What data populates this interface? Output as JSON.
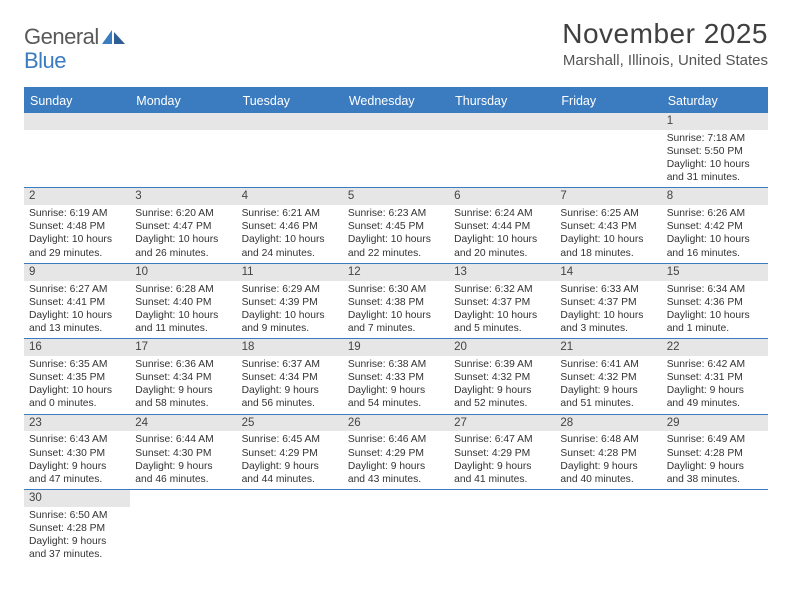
{
  "logo": {
    "part1": "General",
    "part2": "Blue"
  },
  "title": "November 2025",
  "location": "Marshall, Illinois, United States",
  "colors": {
    "accent": "#3b7bbf",
    "header_text": "#ffffff",
    "daynum_bg": "#e6e6e6",
    "text": "#333333",
    "title_color": "#404040",
    "logo_gray": "#595959"
  },
  "day_headers": [
    "Sunday",
    "Monday",
    "Tuesday",
    "Wednesday",
    "Thursday",
    "Friday",
    "Saturday"
  ],
  "weeks": [
    [
      null,
      null,
      null,
      null,
      null,
      null,
      {
        "n": "1",
        "sunrise": "Sunrise: 7:18 AM",
        "sunset": "Sunset: 5:50 PM",
        "dl1": "Daylight: 10 hours",
        "dl2": "and 31 minutes."
      }
    ],
    [
      {
        "n": "2",
        "sunrise": "Sunrise: 6:19 AM",
        "sunset": "Sunset: 4:48 PM",
        "dl1": "Daylight: 10 hours",
        "dl2": "and 29 minutes."
      },
      {
        "n": "3",
        "sunrise": "Sunrise: 6:20 AM",
        "sunset": "Sunset: 4:47 PM",
        "dl1": "Daylight: 10 hours",
        "dl2": "and 26 minutes."
      },
      {
        "n": "4",
        "sunrise": "Sunrise: 6:21 AM",
        "sunset": "Sunset: 4:46 PM",
        "dl1": "Daylight: 10 hours",
        "dl2": "and 24 minutes."
      },
      {
        "n": "5",
        "sunrise": "Sunrise: 6:23 AM",
        "sunset": "Sunset: 4:45 PM",
        "dl1": "Daylight: 10 hours",
        "dl2": "and 22 minutes."
      },
      {
        "n": "6",
        "sunrise": "Sunrise: 6:24 AM",
        "sunset": "Sunset: 4:44 PM",
        "dl1": "Daylight: 10 hours",
        "dl2": "and 20 minutes."
      },
      {
        "n": "7",
        "sunrise": "Sunrise: 6:25 AM",
        "sunset": "Sunset: 4:43 PM",
        "dl1": "Daylight: 10 hours",
        "dl2": "and 18 minutes."
      },
      {
        "n": "8",
        "sunrise": "Sunrise: 6:26 AM",
        "sunset": "Sunset: 4:42 PM",
        "dl1": "Daylight: 10 hours",
        "dl2": "and 16 minutes."
      }
    ],
    [
      {
        "n": "9",
        "sunrise": "Sunrise: 6:27 AM",
        "sunset": "Sunset: 4:41 PM",
        "dl1": "Daylight: 10 hours",
        "dl2": "and 13 minutes."
      },
      {
        "n": "10",
        "sunrise": "Sunrise: 6:28 AM",
        "sunset": "Sunset: 4:40 PM",
        "dl1": "Daylight: 10 hours",
        "dl2": "and 11 minutes."
      },
      {
        "n": "11",
        "sunrise": "Sunrise: 6:29 AM",
        "sunset": "Sunset: 4:39 PM",
        "dl1": "Daylight: 10 hours",
        "dl2": "and 9 minutes."
      },
      {
        "n": "12",
        "sunrise": "Sunrise: 6:30 AM",
        "sunset": "Sunset: 4:38 PM",
        "dl1": "Daylight: 10 hours",
        "dl2": "and 7 minutes."
      },
      {
        "n": "13",
        "sunrise": "Sunrise: 6:32 AM",
        "sunset": "Sunset: 4:37 PM",
        "dl1": "Daylight: 10 hours",
        "dl2": "and 5 minutes."
      },
      {
        "n": "14",
        "sunrise": "Sunrise: 6:33 AM",
        "sunset": "Sunset: 4:37 PM",
        "dl1": "Daylight: 10 hours",
        "dl2": "and 3 minutes."
      },
      {
        "n": "15",
        "sunrise": "Sunrise: 6:34 AM",
        "sunset": "Sunset: 4:36 PM",
        "dl1": "Daylight: 10 hours",
        "dl2": "and 1 minute."
      }
    ],
    [
      {
        "n": "16",
        "sunrise": "Sunrise: 6:35 AM",
        "sunset": "Sunset: 4:35 PM",
        "dl1": "Daylight: 10 hours",
        "dl2": "and 0 minutes."
      },
      {
        "n": "17",
        "sunrise": "Sunrise: 6:36 AM",
        "sunset": "Sunset: 4:34 PM",
        "dl1": "Daylight: 9 hours",
        "dl2": "and 58 minutes."
      },
      {
        "n": "18",
        "sunrise": "Sunrise: 6:37 AM",
        "sunset": "Sunset: 4:34 PM",
        "dl1": "Daylight: 9 hours",
        "dl2": "and 56 minutes."
      },
      {
        "n": "19",
        "sunrise": "Sunrise: 6:38 AM",
        "sunset": "Sunset: 4:33 PM",
        "dl1": "Daylight: 9 hours",
        "dl2": "and 54 minutes."
      },
      {
        "n": "20",
        "sunrise": "Sunrise: 6:39 AM",
        "sunset": "Sunset: 4:32 PM",
        "dl1": "Daylight: 9 hours",
        "dl2": "and 52 minutes."
      },
      {
        "n": "21",
        "sunrise": "Sunrise: 6:41 AM",
        "sunset": "Sunset: 4:32 PM",
        "dl1": "Daylight: 9 hours",
        "dl2": "and 51 minutes."
      },
      {
        "n": "22",
        "sunrise": "Sunrise: 6:42 AM",
        "sunset": "Sunset: 4:31 PM",
        "dl1": "Daylight: 9 hours",
        "dl2": "and 49 minutes."
      }
    ],
    [
      {
        "n": "23",
        "sunrise": "Sunrise: 6:43 AM",
        "sunset": "Sunset: 4:30 PM",
        "dl1": "Daylight: 9 hours",
        "dl2": "and 47 minutes."
      },
      {
        "n": "24",
        "sunrise": "Sunrise: 6:44 AM",
        "sunset": "Sunset: 4:30 PM",
        "dl1": "Daylight: 9 hours",
        "dl2": "and 46 minutes."
      },
      {
        "n": "25",
        "sunrise": "Sunrise: 6:45 AM",
        "sunset": "Sunset: 4:29 PM",
        "dl1": "Daylight: 9 hours",
        "dl2": "and 44 minutes."
      },
      {
        "n": "26",
        "sunrise": "Sunrise: 6:46 AM",
        "sunset": "Sunset: 4:29 PM",
        "dl1": "Daylight: 9 hours",
        "dl2": "and 43 minutes."
      },
      {
        "n": "27",
        "sunrise": "Sunrise: 6:47 AM",
        "sunset": "Sunset: 4:29 PM",
        "dl1": "Daylight: 9 hours",
        "dl2": "and 41 minutes."
      },
      {
        "n": "28",
        "sunrise": "Sunrise: 6:48 AM",
        "sunset": "Sunset: 4:28 PM",
        "dl1": "Daylight: 9 hours",
        "dl2": "and 40 minutes."
      },
      {
        "n": "29",
        "sunrise": "Sunrise: 6:49 AM",
        "sunset": "Sunset: 4:28 PM",
        "dl1": "Daylight: 9 hours",
        "dl2": "and 38 minutes."
      }
    ],
    [
      {
        "n": "30",
        "sunrise": "Sunrise: 6:50 AM",
        "sunset": "Sunset: 4:28 PM",
        "dl1": "Daylight: 9 hours",
        "dl2": "and 37 minutes."
      },
      null,
      null,
      null,
      null,
      null,
      null
    ]
  ]
}
